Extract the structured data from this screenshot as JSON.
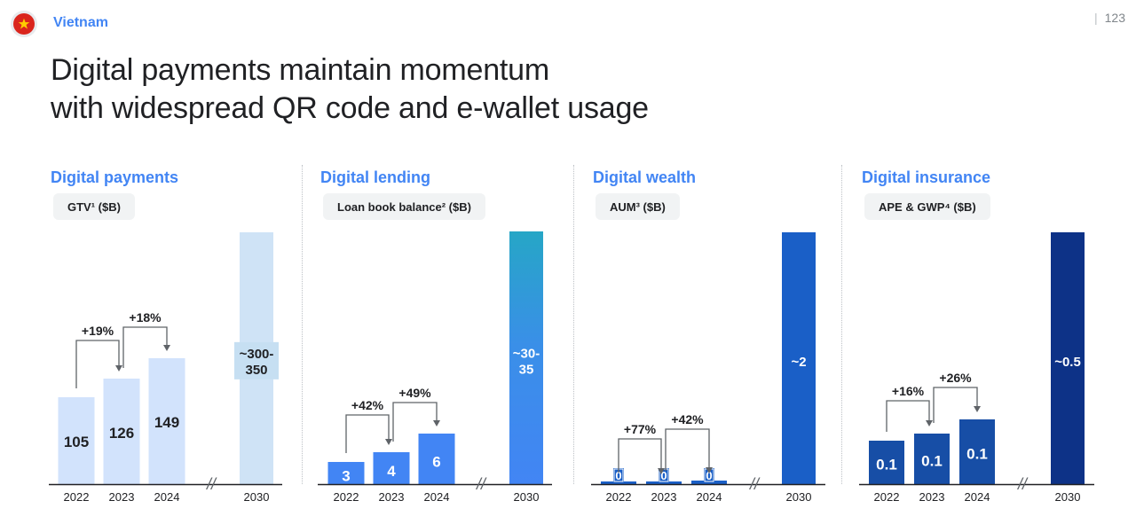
{
  "header": {
    "country": "Vietnam",
    "page_number": "123",
    "flag_icon": "vietnam-flag-icon"
  },
  "title": {
    "line1": "Digital payments maintain momentum",
    "line2": "with widespread QR code and e-wallet usage"
  },
  "colors": {
    "accent": "#4285f4",
    "payments_bar": "#d2e3fc",
    "payments_bar_2030": "#cfe3f6",
    "lending_bar": "#4285f4",
    "wealth_bar": "#1a5fc7",
    "insurance_bar": "#174ea6",
    "insurance_bar_2030": "#0d3287"
  },
  "chart_data": [
    {
      "type": "bar",
      "title": "Digital payments",
      "ylabel": "GTV¹ ($B)",
      "categories": [
        "2022",
        "2023",
        "2024",
        "2030"
      ],
      "values": [
        105,
        126,
        149,
        325
      ],
      "labels": [
        "105",
        "126",
        "149",
        "~300-\n350"
      ],
      "growth": [
        {
          "from": "2022",
          "to": "2023",
          "label": "+19%"
        },
        {
          "from": "2023",
          "to": "2024",
          "label": "+18%"
        }
      ],
      "axis_break": "//"
    },
    {
      "type": "bar",
      "title": "Digital lending",
      "ylabel": "Loan book balance² ($B)",
      "categories": [
        "2022",
        "2023",
        "2024",
        "2030"
      ],
      "values": [
        3,
        4,
        6,
        32.5
      ],
      "labels": [
        "3",
        "4",
        "6",
        "~30-\n35"
      ],
      "growth": [
        {
          "from": "2022",
          "to": "2023",
          "label": "+42%"
        },
        {
          "from": "2023",
          "to": "2024",
          "label": "+49%"
        }
      ],
      "axis_break": "//"
    },
    {
      "type": "bar",
      "title": "Digital wealth",
      "ylabel": "AUM³ ($B)",
      "categories": [
        "2022",
        "2023",
        "2024",
        "2030"
      ],
      "values": [
        0.2,
        0.3,
        0.4,
        2
      ],
      "labels": [
        "0",
        "0",
        "0",
        "~2"
      ],
      "growth": [
        {
          "from": "2022",
          "to": "2023",
          "label": "+77%"
        },
        {
          "from": "2023",
          "to": "2024",
          "label": "+42%"
        }
      ],
      "axis_break": "//"
    },
    {
      "type": "bar",
      "title": "Digital insurance",
      "ylabel": "APE & GWP⁴ ($B)",
      "categories": [
        "2022",
        "2023",
        "2024",
        "2030"
      ],
      "values": [
        0.1,
        0.1,
        0.1,
        0.5
      ],
      "labels": [
        "0.1",
        "0.1",
        "0.1",
        "~0.5"
      ],
      "growth": [
        {
          "from": "2022",
          "to": "2023",
          "label": "+16%"
        },
        {
          "from": "2023",
          "to": "2024",
          "label": "+26%"
        }
      ],
      "axis_break": "//"
    }
  ]
}
